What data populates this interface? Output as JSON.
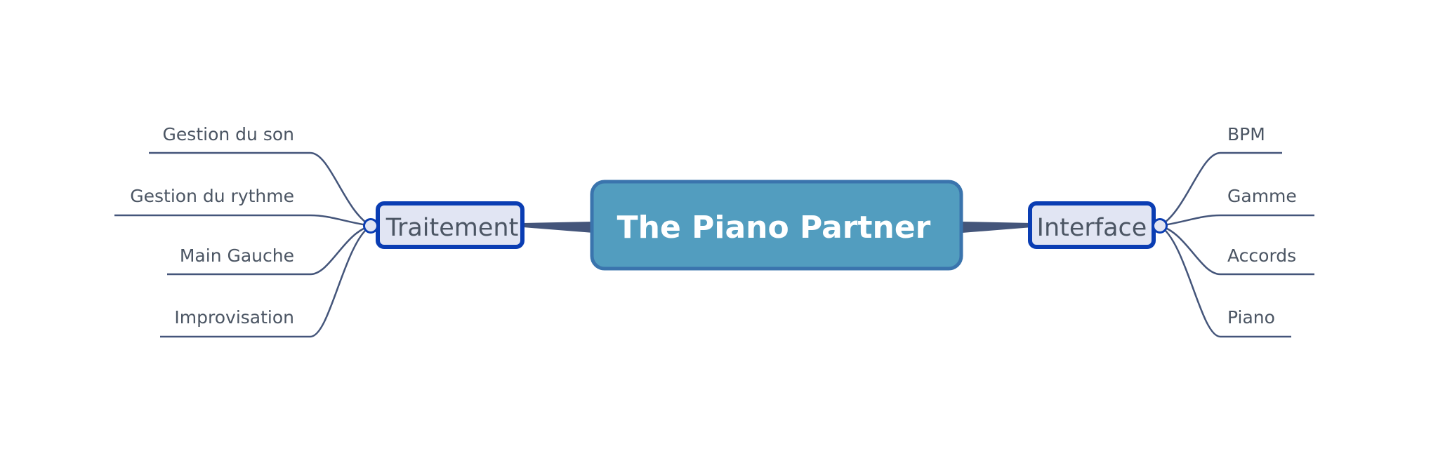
{
  "root": {
    "label": "The Piano Partner",
    "color": "#529dbf",
    "border": "#3a74ad"
  },
  "branches": {
    "left": {
      "label": "Traitement",
      "children": [
        "Gestion du son",
        "Gestion du rythme",
        "Main Gauche",
        "Improvisation"
      ]
    },
    "right": {
      "label": "Interface",
      "children": [
        "BPM",
        "Gamme",
        "Accords",
        "Piano"
      ]
    }
  },
  "colors": {
    "branch_fill": "#e1e5f3",
    "branch_border": "#0a3db3",
    "edge": "#44557a",
    "text": "#4b5563"
  }
}
